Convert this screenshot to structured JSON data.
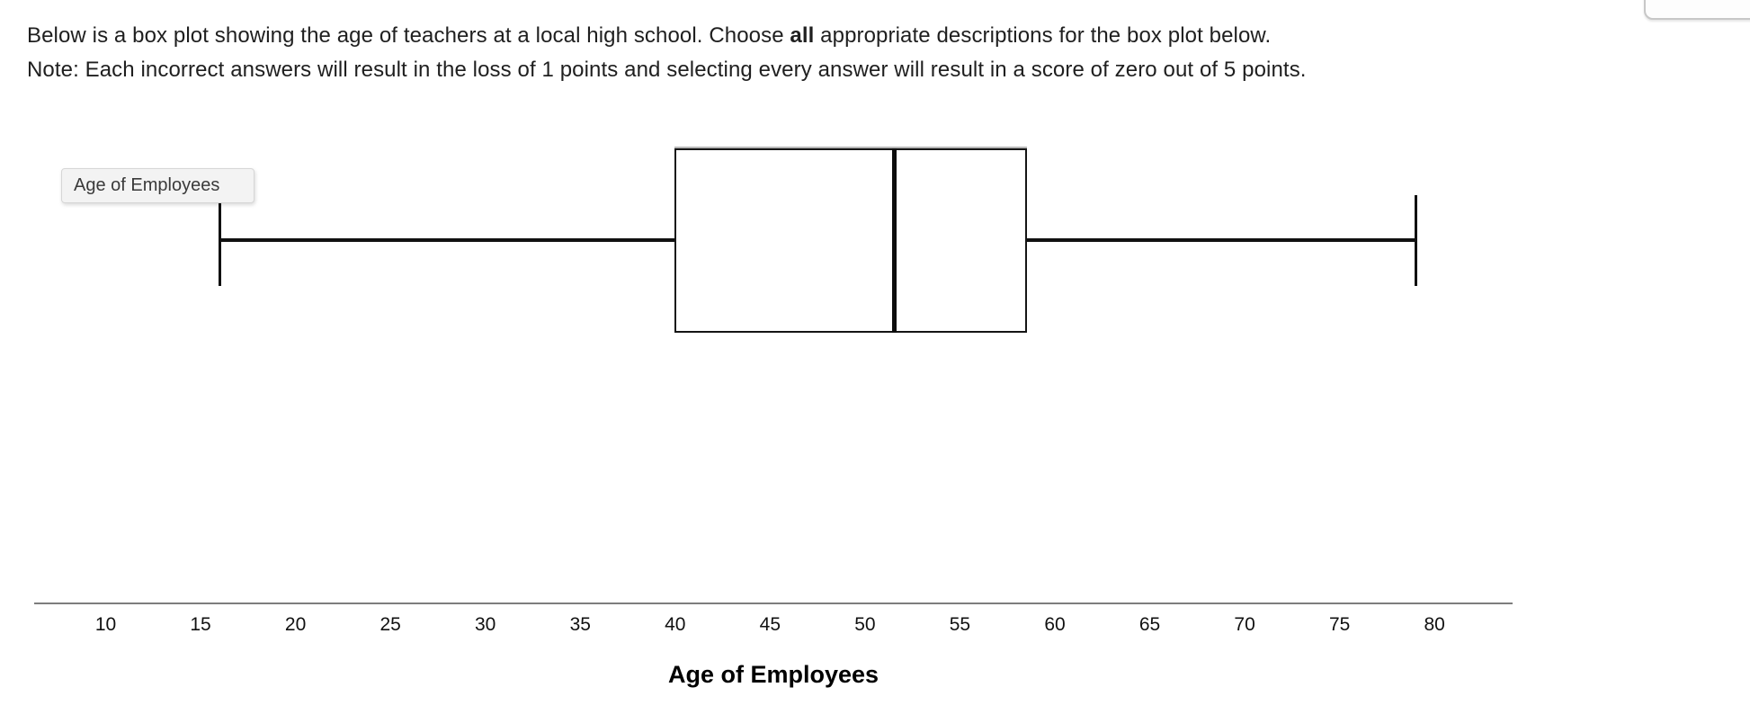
{
  "question": {
    "line1_prefix": "Below is a box plot showing the age of teachers at a local high school. Choose ",
    "line1_bold": "all",
    "line1_suffix": " appropriate descriptions for the box plot below.",
    "line2": "Note: Each incorrect answers will result in the loss of 1 points and selecting every answer will result in a score of zero out of 5 points."
  },
  "chart_data": {
    "type": "boxplot",
    "orientation": "horizontal",
    "series_label": "Age of Employees",
    "xlabel": "Age of Employees",
    "min": 16,
    "q1": 40,
    "median": 51.5,
    "q3": 58.5,
    "max": 79,
    "outliers": [],
    "xlim": [
      10,
      80
    ],
    "ticks": [
      10,
      15,
      20,
      25,
      30,
      35,
      40,
      45,
      50,
      55,
      60,
      65,
      70,
      75,
      80
    ],
    "grid": false,
    "colors": {
      "box_line": "#111111",
      "box_fill": "#ffffff",
      "axis_line": "#7d7d7d",
      "tooltip_bg": "#f3f3f3"
    }
  }
}
